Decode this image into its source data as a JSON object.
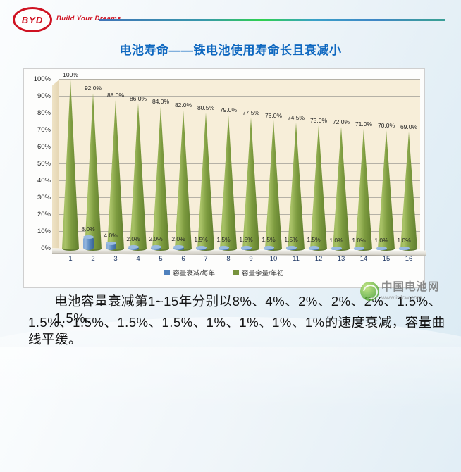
{
  "header": {
    "logo_text": "BYD",
    "slogan": "Build Your Dreams"
  },
  "title": {
    "text": "电池寿命——铁电池使用寿命长且衰减小",
    "color": "#0f68c0"
  },
  "chart_data": {
    "type": "bar",
    "variant": "3d-cone-and-cylinder",
    "title": "",
    "xlabel": "",
    "ylabel": "",
    "categories": [
      "1",
      "2",
      "3",
      "4",
      "5",
      "6",
      "7",
      "8",
      "9",
      "10",
      "11",
      "12",
      "13",
      "14",
      "15",
      "16"
    ],
    "series": [
      {
        "name": "容量衰减/每年",
        "shape": "cylinder",
        "color": "#4f81bd",
        "values": [
          null,
          8,
          4,
          2,
          2,
          2,
          1.5,
          1.5,
          1.5,
          1.5,
          1.5,
          1.5,
          1,
          1,
          1,
          1
        ],
        "labels": [
          "",
          "8.0%",
          "4.0%",
          "2.0%",
          "2.0%",
          "2.0%",
          "1.5%",
          "1.5%",
          "1.5%",
          "1.5%",
          "1.5%",
          "1.5%",
          "1.0%",
          "1.0%",
          "1.0%",
          "1.0%"
        ]
      },
      {
        "name": "容量余量/年初",
        "shape": "cone",
        "color": "#77933c",
        "values": [
          100,
          92,
          88,
          86,
          84,
          82,
          80.5,
          79,
          77.5,
          76,
          74.5,
          73,
          72,
          71,
          70,
          69
        ],
        "labels": [
          "100%",
          "92.0%",
          "88.0%",
          "86.0%",
          "84.0%",
          "82.0%",
          "80.5%",
          "79.0%",
          "77.5%",
          "76.0%",
          "74.5%",
          "73.0%",
          "72.0%",
          "71.0%",
          "70.0%",
          "69.0%"
        ]
      }
    ],
    "ylim": [
      0,
      100
    ],
    "ytick_labels": [
      "0%",
      "10%",
      "20%",
      "30%",
      "40%",
      "50%",
      "60%",
      "70%",
      "80%",
      "90%",
      "100%"
    ],
    "grid": true,
    "legend_position": "bottom",
    "plot_bg": "#f7eed9"
  },
  "watermark": {
    "name": "中国电池网",
    "url": "www.itdcw.com"
  },
  "caption": {
    "line1": "电池容量衰减第1~15年分别以8%、4%、2%、2%、2%、1.5%、1.5%、",
    "line2": "1.5%、1.5%、1.5%、1.5%、1%、1%、1%、1%的速度衰减，容量曲线平缓。"
  }
}
